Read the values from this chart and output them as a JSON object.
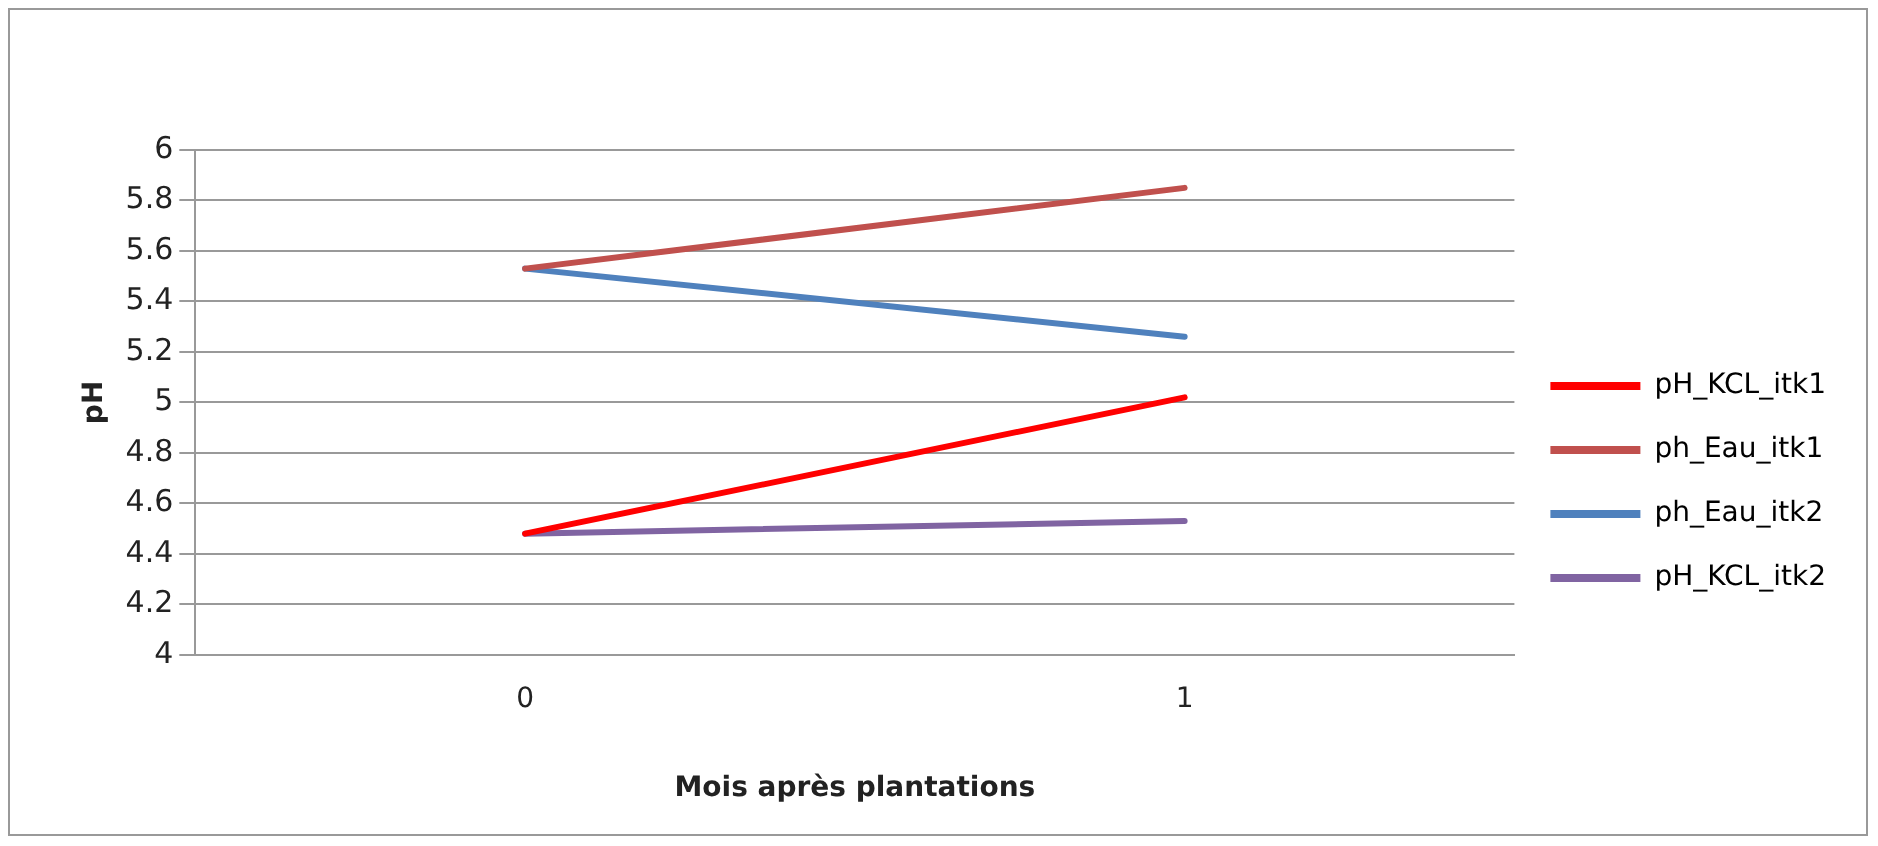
{
  "chart_data": {
    "type": "line",
    "xlabel": "Mois après plantations",
    "ylabel": "pH",
    "categories": [
      "0",
      "1"
    ],
    "series": [
      {
        "name": "pH_KCL_itk1",
        "color": "#ff0000",
        "values": [
          4.48,
          5.02
        ]
      },
      {
        "name": "ph_Eau_itk1",
        "color": "#c0504d",
        "values": [
          5.53,
          5.85
        ]
      },
      {
        "name": "ph_Eau_itk2",
        "color": "#4f81bd",
        "values": [
          5.53,
          5.26
        ]
      },
      {
        "name": "pH_KCL_itk2",
        "color": "#8064a2",
        "values": [
          4.48,
          4.53
        ]
      }
    ],
    "ylim": [
      4,
      6
    ],
    "yticks": [
      4,
      4.2,
      4.4,
      4.6,
      4.8,
      5,
      5.2,
      5.4,
      5.6,
      5.8,
      6
    ],
    "grid": "y",
    "legend": "right",
    "marker": "none",
    "line_style": "solid"
  }
}
